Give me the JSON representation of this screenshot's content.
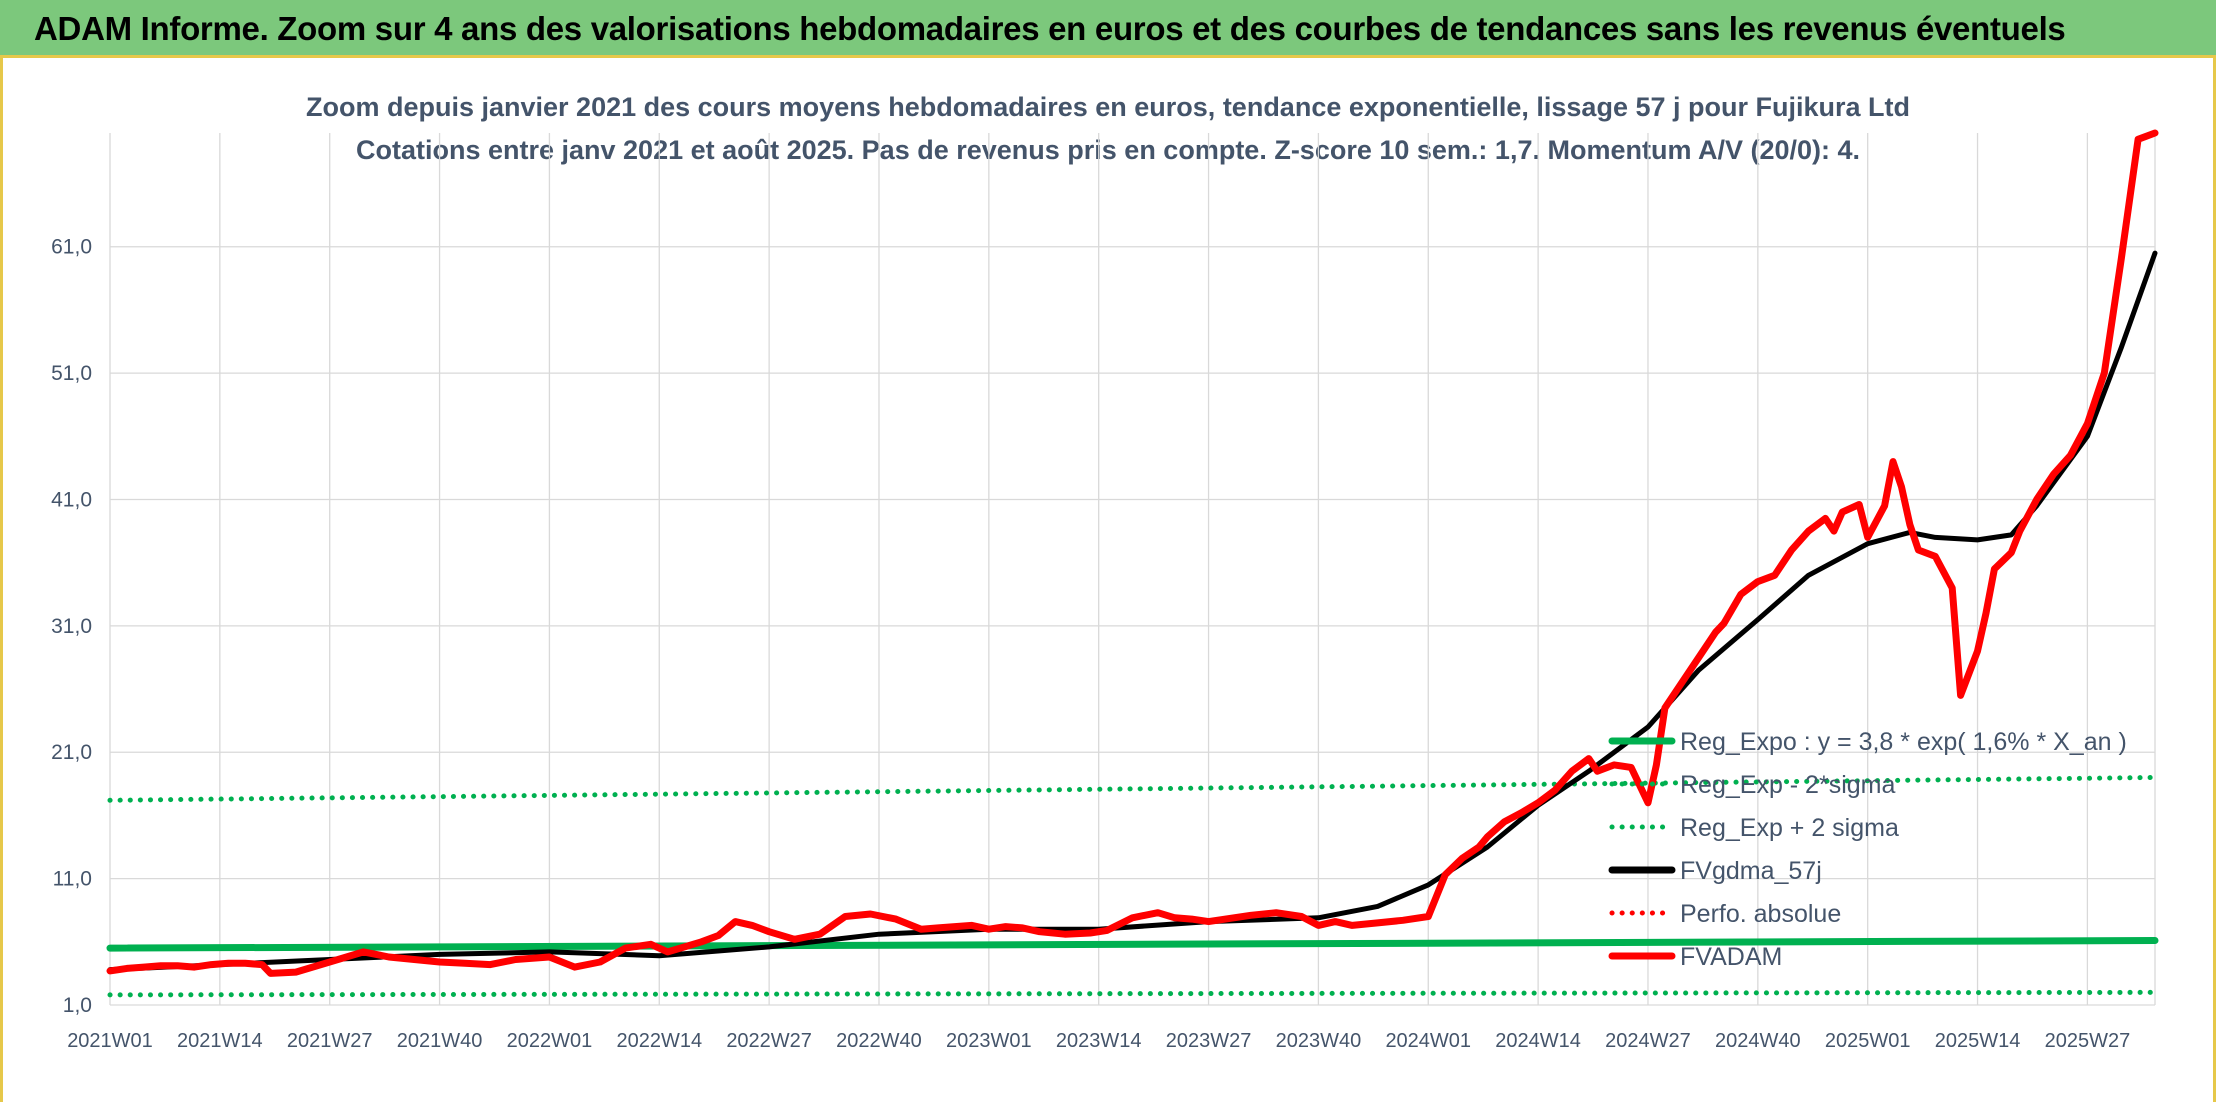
{
  "banner": {
    "title": "ADAM Informe. Zoom sur 4 ans des valorisations hebdomadaires en euros et des courbes de tendances sans les revenus éventuels"
  },
  "colors": {
    "banner_bg": "#7cc87c",
    "frame_border": "#e6c84a",
    "reg_green": "#00b050",
    "fvadam_red": "#ff0000",
    "fvgdma_black": "#000000",
    "text": "#44546a",
    "grid": "#d9d9d9"
  },
  "chart_data": {
    "type": "line",
    "title_lines": [
      "Zoom depuis janvier 2021 des cours moyens hebdomadaires en euros, tendance exponentielle, lissage 57 j pour Fujikura Ltd",
      "Cotations entre janv 2021 et août 2025. Pas de revenus pris en compte. Z-score 10 sem.: 1,7. Momentum A/V (20/0): 4."
    ],
    "ylim": [
      1,
      70
    ],
    "y_ticks": [
      "1,0",
      "11,0",
      "21,0",
      "31,0",
      "41,0",
      "51,0",
      "61,0"
    ],
    "y_tick_values": [
      1,
      11,
      21,
      31,
      41,
      51,
      61
    ],
    "x_range": [
      0,
      242
    ],
    "x_ticks": [
      "2021W01",
      "2021W14",
      "2021W27",
      "2021W40",
      "2022W01",
      "2022W14",
      "2022W27",
      "2022W40",
      "2023W01",
      "2023W14",
      "2023W27",
      "2023W40",
      "2024W01",
      "2024W14",
      "2024W27",
      "2024W40",
      "2025W01",
      "2025W14",
      "2025W27"
    ],
    "x_tick_values": [
      0,
      13,
      26,
      39,
      52,
      65,
      78,
      91,
      104,
      117,
      130,
      143,
      156,
      169,
      182,
      195,
      208,
      221,
      234
    ],
    "grid": true,
    "legend_position": "right",
    "legend": [
      {
        "label": "Reg_Expo : y = 3,8 * exp( 1,6% *  X_an )",
        "color": "#00b050",
        "style": "solid"
      },
      {
        "label": "Reg_Exp - 2*sigma",
        "color": "#00b050",
        "style": "dotted"
      },
      {
        "label": "Reg_Exp + 2 sigma",
        "color": "#00b050",
        "style": "dotted"
      },
      {
        "label": "FVgdma_57j",
        "color": "#000000",
        "style": "solid"
      },
      {
        "label": "Perfo. absolue",
        "color": "#ff0000",
        "style": "dotted"
      },
      {
        "label": "FVADAM",
        "color": "#ff0000",
        "style": "solid"
      }
    ],
    "series": [
      {
        "name": "Reg_Expo : y = 3,8 * exp( 1,6% *  X_an )",
        "color": "#00b050",
        "style": "solid",
        "x": [
          0,
          242
        ],
        "y": [
          5.5,
          6.1
        ]
      },
      {
        "name": "Reg_Exp - 2*sigma",
        "color": "#00b050",
        "style": "dotted",
        "x": [
          0,
          242
        ],
        "y": [
          1.8,
          2.0
        ]
      },
      {
        "name": "Reg_Exp + 2 sigma",
        "color": "#00b050",
        "style": "dotted",
        "x": [
          0,
          242
        ],
        "y": [
          17.2,
          19.0
        ]
      },
      {
        "name": "FVgdma_57j",
        "color": "#000000",
        "style": "solid",
        "x": [
          0,
          13,
          26,
          39,
          52,
          65,
          78,
          91,
          104,
          117,
          130,
          143,
          150,
          156,
          163,
          169,
          175,
          182,
          188,
          195,
          201,
          208,
          213,
          216,
          221,
          225,
          228,
          234,
          238,
          242
        ],
        "y": [
          3.8,
          4.2,
          4.6,
          5.0,
          5.2,
          4.9,
          5.6,
          6.6,
          7.0,
          7.0,
          7.6,
          7.9,
          8.8,
          10.5,
          13.5,
          16.8,
          19.5,
          23.0,
          27.5,
          31.5,
          35.0,
          37.5,
          38.4,
          38.0,
          37.8,
          38.2,
          40.5,
          46.0,
          53.0,
          60.5
        ]
      },
      {
        "name": "FVADAM",
        "color": "#ff0000",
        "style": "solid",
        "x": [
          0,
          2,
          4,
          6,
          8,
          10,
          12,
          14,
          16,
          18,
          19,
          22,
          26,
          30,
          33,
          36,
          39,
          42,
          45,
          48,
          52,
          55,
          58,
          61,
          64,
          66,
          68,
          70,
          72,
          74,
          76,
          78,
          81,
          84,
          87,
          90,
          93,
          96,
          98,
          100,
          102,
          104,
          106,
          108,
          110,
          113,
          116,
          118,
          121,
          124,
          126,
          128,
          130,
          132,
          135,
          138,
          141,
          143,
          145,
          147,
          150,
          153,
          156,
          158,
          160,
          162,
          163,
          165,
          167,
          169,
          171,
          173,
          175,
          176,
          178,
          180,
          182,
          183,
          184,
          186,
          188,
          190,
          191,
          193,
          195,
          197,
          199,
          201,
          203,
          204,
          205,
          207,
          208,
          210,
          211,
          212,
          213,
          214,
          216,
          218,
          219,
          221,
          222,
          223,
          225,
          226,
          228,
          230,
          232,
          234,
          236,
          238,
          240,
          242
        ],
        "y": [
          3.7,
          3.9,
          4.0,
          4.1,
          4.1,
          4.0,
          4.2,
          4.3,
          4.3,
          4.2,
          3.5,
          3.6,
          4.4,
          5.2,
          4.8,
          4.6,
          4.4,
          4.3,
          4.2,
          4.6,
          4.8,
          4.0,
          4.4,
          5.5,
          5.8,
          5.2,
          5.6,
          6.0,
          6.5,
          7.6,
          7.3,
          6.8,
          6.2,
          6.6,
          8.0,
          8.2,
          7.8,
          7.0,
          7.1,
          7.2,
          7.3,
          7.0,
          7.2,
          7.1,
          6.8,
          6.6,
          6.7,
          6.9,
          7.9,
          8.3,
          7.9,
          7.8,
          7.6,
          7.8,
          8.1,
          8.3,
          8.0,
          7.3,
          7.6,
          7.3,
          7.5,
          7.7,
          8.0,
          11.3,
          12.6,
          13.5,
          14.3,
          15.5,
          16.2,
          17.0,
          18.0,
          19.5,
          20.5,
          19.5,
          20.0,
          19.8,
          17.0,
          20.0,
          24.5,
          26.5,
          28.5,
          30.5,
          31.2,
          33.5,
          34.5,
          35.0,
          37.0,
          38.5,
          39.5,
          38.5,
          40.0,
          40.6,
          38.0,
          40.5,
          44.0,
          42.0,
          39.0,
          37.0,
          36.5,
          34.0,
          25.5,
          29.0,
          32.0,
          35.5,
          36.8,
          38.5,
          41.0,
          43.0,
          44.5,
          47.0,
          51.0,
          60.0,
          69.5,
          70.0
        ]
      }
    ]
  }
}
